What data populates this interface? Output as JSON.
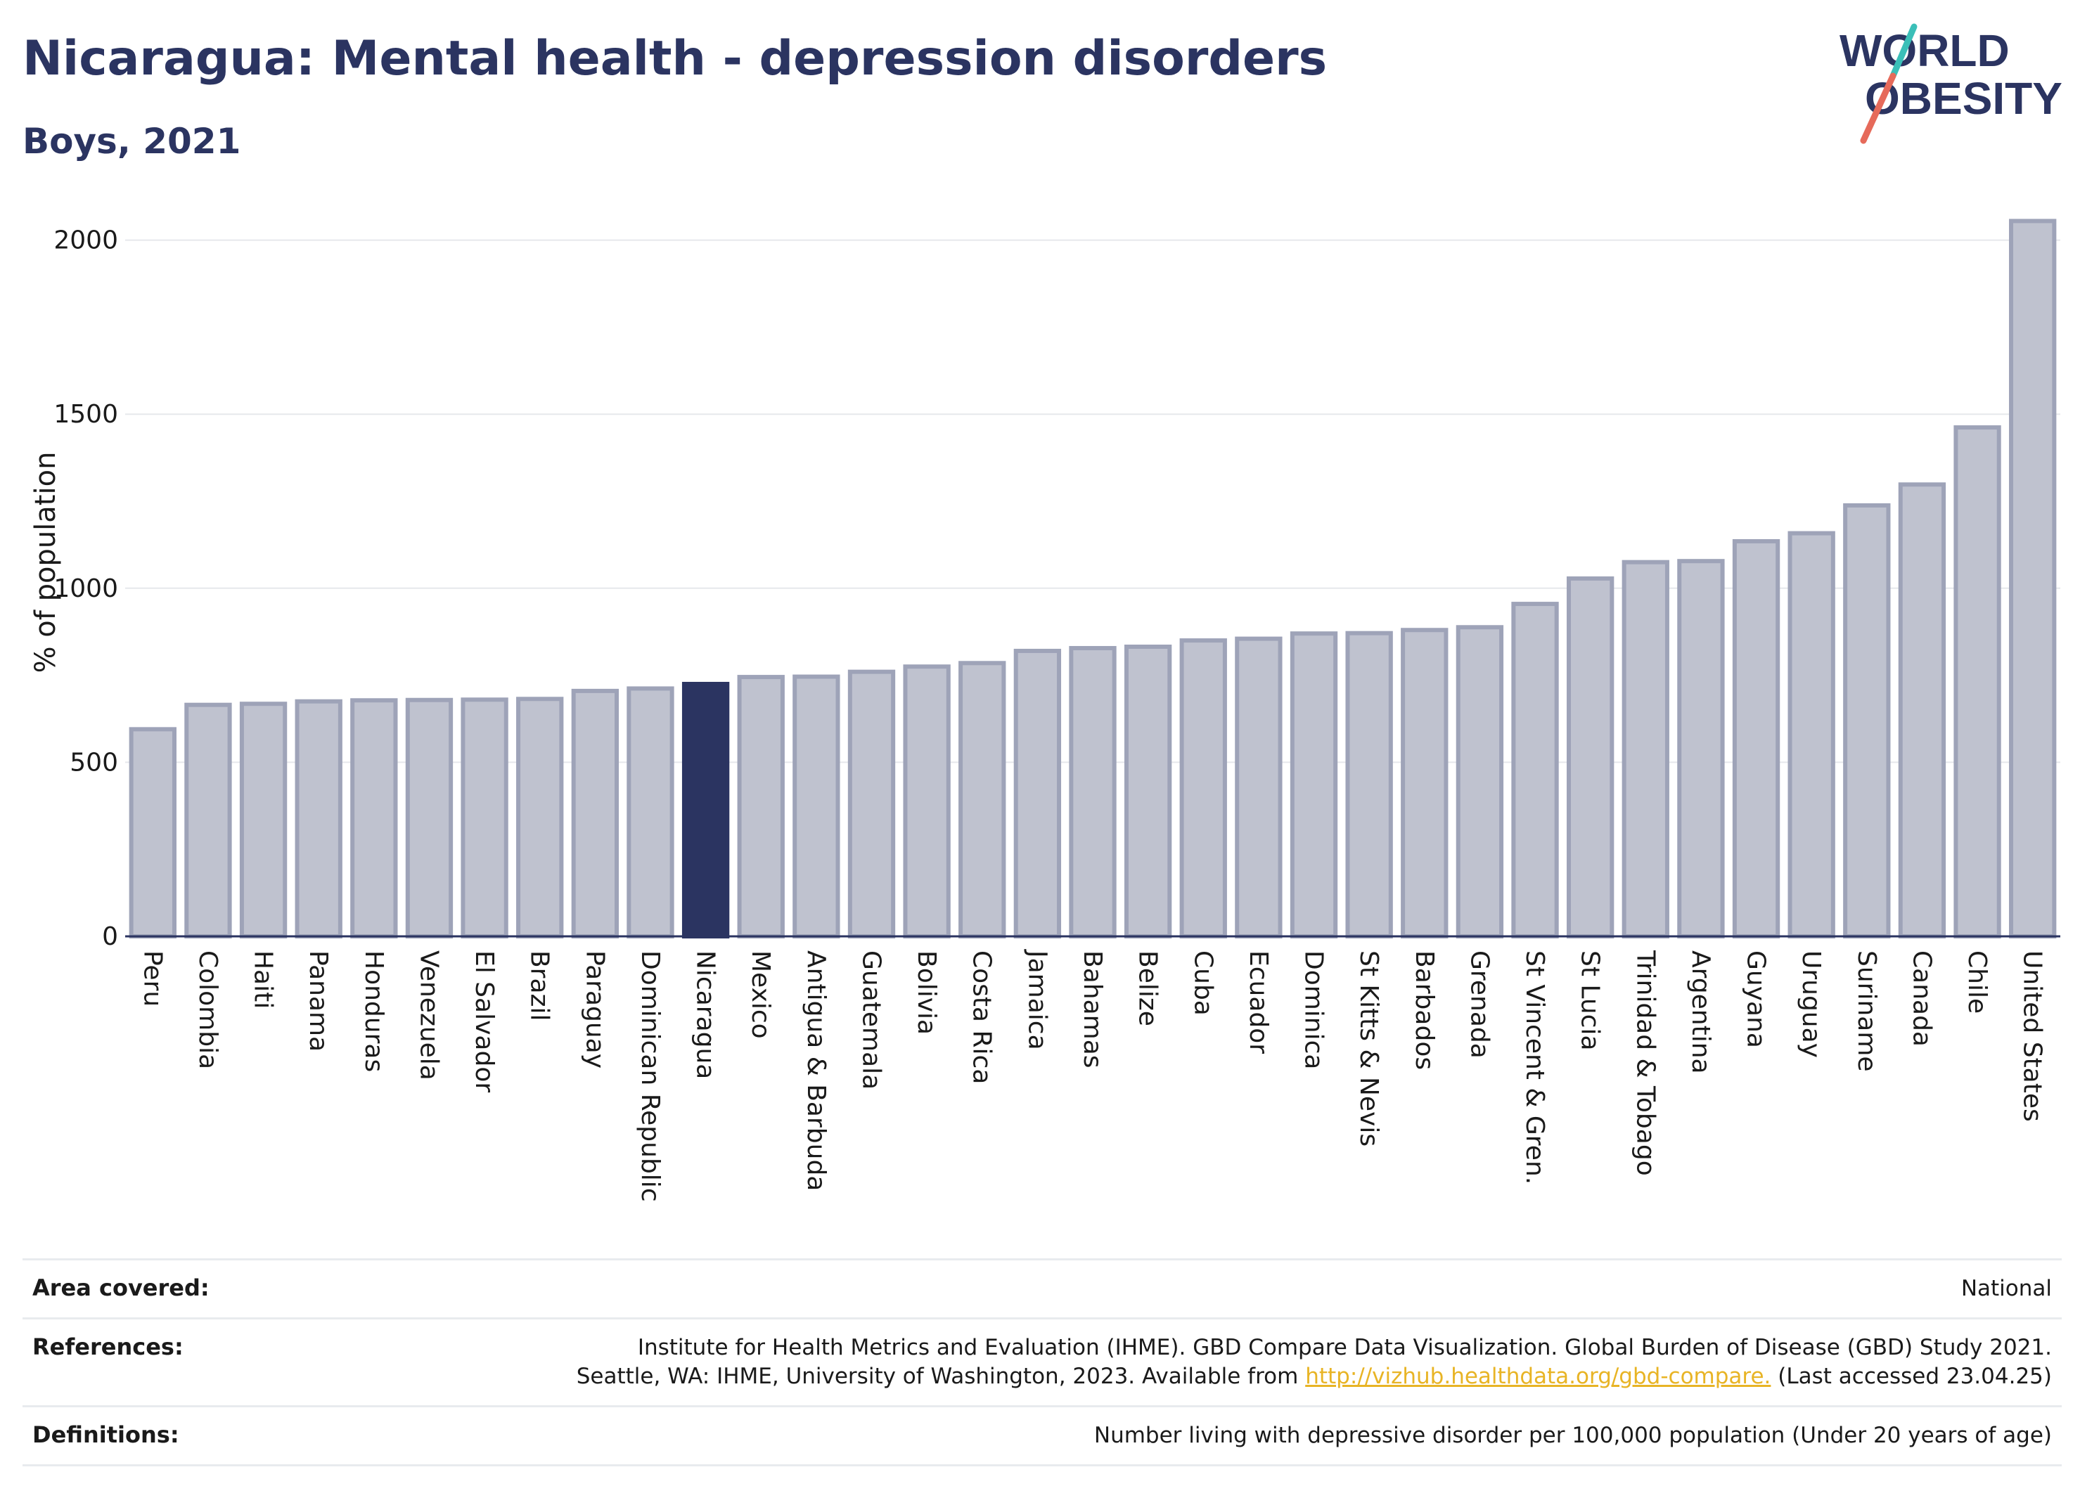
{
  "header": {
    "title": "Nicaragua: Mental health - depression disorders",
    "subtitle": "Boys, 2021"
  },
  "logo": {
    "line1": "WORLD",
    "line2": "OBESITY",
    "name": "world-obesity-logo"
  },
  "colors": {
    "highlight": "#2b3461",
    "bar": "#bfc2cf",
    "bar_border": "#9ea3b8",
    "link": "#e8b425"
  },
  "chart_data": {
    "type": "bar",
    "ylabel": "% of population",
    "ylim": [
      0,
      2080
    ],
    "yticks": [
      0,
      500,
      1000,
      1500,
      2000
    ],
    "grid": true,
    "highlight": "Nicaragua",
    "categories": [
      "Peru",
      "Colombia",
      "Haiti",
      "Panama",
      "Honduras",
      "Venezuela",
      "El Salvador",
      "Brazil",
      "Paraguay",
      "Dominican Republic",
      "Nicaragua",
      "Mexico",
      "Antigua & Barbuda",
      "Guatemala",
      "Bolivia",
      "Costa Rica",
      "Jamaica",
      "Bahamas",
      "Belize",
      "Cuba",
      "Ecuador",
      "Dominica",
      "St Kitts & Nevis",
      "Barbados",
      "Grenada",
      "St Vincent & Gren.",
      "St Lucia",
      "Trinidad & Tobago",
      "Argentina",
      "Guyana",
      "Uruguay",
      "Suriname",
      "Canada",
      "Chile",
      "United States"
    ],
    "values": [
      595,
      665,
      668,
      675,
      678,
      679,
      680,
      682,
      705,
      712,
      725,
      745,
      746,
      760,
      775,
      785,
      820,
      828,
      832,
      850,
      855,
      870,
      871,
      880,
      888,
      955,
      1028,
      1075,
      1078,
      1135,
      1158,
      1238,
      1298,
      1462,
      2055
    ]
  },
  "footer": {
    "area_label": "Area covered:",
    "area_value": "National",
    "references_label": "References:",
    "references_line1": "Institute for Health Metrics and Evaluation (IHME). GBD Compare Data Visualization. Global Burden of Disease (GBD) Study 2021.",
    "references_line2_pre": "Seattle, WA: IHME, University of Washington, 2023. Available from ",
    "references_link": "http://vizhub.healthdata.org/gbd-compare.",
    "references_line2_post": " (Last accessed 23.04.25)",
    "definitions_label": "Definitions:",
    "definitions_value": "Number living with depressive disorder per 100,000 population (Under 20 years of age)"
  }
}
